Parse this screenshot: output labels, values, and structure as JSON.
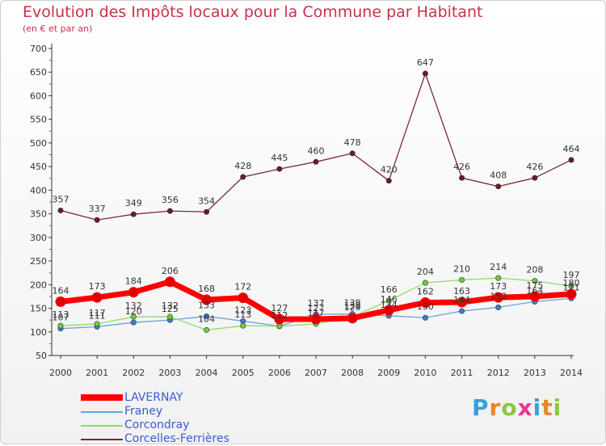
{
  "header": {
    "title": "Evolution des Impôts locaux pour la Commune par Habitant",
    "subtitle": "(en € et par an)"
  },
  "logo": {
    "text": "Proxiti",
    "colors": [
      "#3aa0d8",
      "#e8862a",
      "#8cc63f",
      "#e83a8c",
      "#3aa0d8",
      "#e8862a",
      "#8cc63f"
    ]
  },
  "chart_data": {
    "type": "line",
    "title": "Evolution des Impôts locaux pour la Commune par Habitant",
    "subtitle": "(en € et par an)",
    "x": [
      "2000",
      "2001",
      "2002",
      "2003",
      "2004",
      "2005",
      "2006",
      "2007",
      "2008",
      "2009",
      "2010",
      "2011",
      "2012",
      "2013",
      "2014"
    ],
    "ylim": [
      50,
      700
    ],
    "yticks": [
      50,
      100,
      150,
      200,
      250,
      300,
      350,
      400,
      450,
      500,
      550,
      600,
      650,
      700
    ],
    "grid": false,
    "legend_position": "bottom-left",
    "series": [
      {
        "name": "LAVERNAY",
        "color": "#ff0000",
        "marker_color": "#e00000",
        "emphasis": "thick",
        "values": [
          164,
          173,
          184,
          206,
          168,
          172,
          127,
          127,
          129,
          146,
          162,
          163,
          173,
          175,
          180
        ]
      },
      {
        "name": "Franey",
        "color": "#6ca0d8",
        "marker_color": "#3a7ecf",
        "values": [
          107,
          111,
          120,
          125,
          133,
          123,
          112,
          137,
          138,
          134,
          130,
          144,
          152,
          164,
          171
        ]
      },
      {
        "name": "Corcondray",
        "color": "#8fdc6a",
        "marker_color": "#6fcc3c",
        "values": [
          113,
          117,
          132,
          132,
          104,
          113,
          112,
          117,
          132,
          166,
          204,
          210,
          214,
          208,
          197
        ]
      },
      {
        "name": "Corcelles-Ferrières",
        "color": "#7a2a32",
        "marker_color": "#6a1c24",
        "values": [
          357,
          337,
          349,
          356,
          354,
          428,
          445,
          460,
          478,
          420,
          647,
          426,
          408,
          426,
          464
        ]
      }
    ]
  }
}
